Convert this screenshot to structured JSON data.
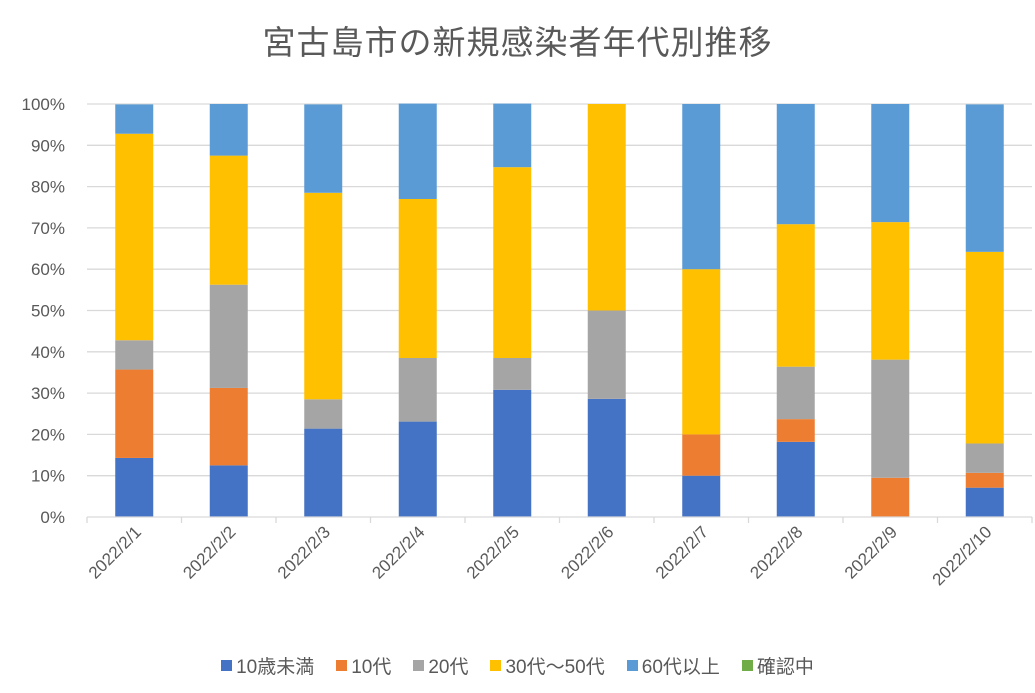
{
  "chart_data": {
    "type": "bar",
    "stacked": "percent",
    "title": "宮古島市の新規感染者年代別推移",
    "xlabel": "",
    "ylabel": "",
    "ylim": [
      0,
      100
    ],
    "y_ticks": [
      "0%",
      "10%",
      "20%",
      "30%",
      "40%",
      "50%",
      "60%",
      "70%",
      "80%",
      "90%",
      "100%"
    ],
    "grid": true,
    "legend_position": "bottom",
    "categories": [
      "2022/2/1",
      "2022/2/2",
      "2022/2/3",
      "2022/2/4",
      "2022/2/5",
      "2022/2/6",
      "2022/2/7",
      "2022/2/8",
      "2022/2/9",
      "2022/2/10"
    ],
    "series": [
      {
        "name": "10歳未満",
        "color": "#4472C4",
        "values": [
          14.3,
          12.5,
          21.4,
          23.1,
          30.8,
          28.6,
          10.0,
          18.2,
          0,
          7.1
        ]
      },
      {
        "name": "10代",
        "color": "#ED7D31",
        "values": [
          21.4,
          18.75,
          0,
          0,
          0,
          0,
          10.0,
          5.5,
          9.5,
          3.6
        ]
      },
      {
        "name": "20代",
        "color": "#A5A5A5",
        "values": [
          7.1,
          25.0,
          7.1,
          15.4,
          7.7,
          21.4,
          0,
          12.7,
          28.6,
          7.1
        ]
      },
      {
        "name": "30代〜50代",
        "color": "#FFC000",
        "values": [
          50.0,
          31.25,
          50.0,
          38.5,
          46.2,
          50.0,
          40.0,
          34.5,
          33.3,
          46.4
        ]
      },
      {
        "name": "60代以上",
        "color": "#5B9BD5",
        "values": [
          7.1,
          12.5,
          21.4,
          23.1,
          15.4,
          0,
          40.0,
          29.1,
          28.6,
          35.7
        ]
      },
      {
        "name": "確認中",
        "color": "#70AD47",
        "values": [
          0,
          0,
          0,
          0,
          0,
          0,
          0,
          0,
          0,
          0
        ]
      }
    ]
  }
}
